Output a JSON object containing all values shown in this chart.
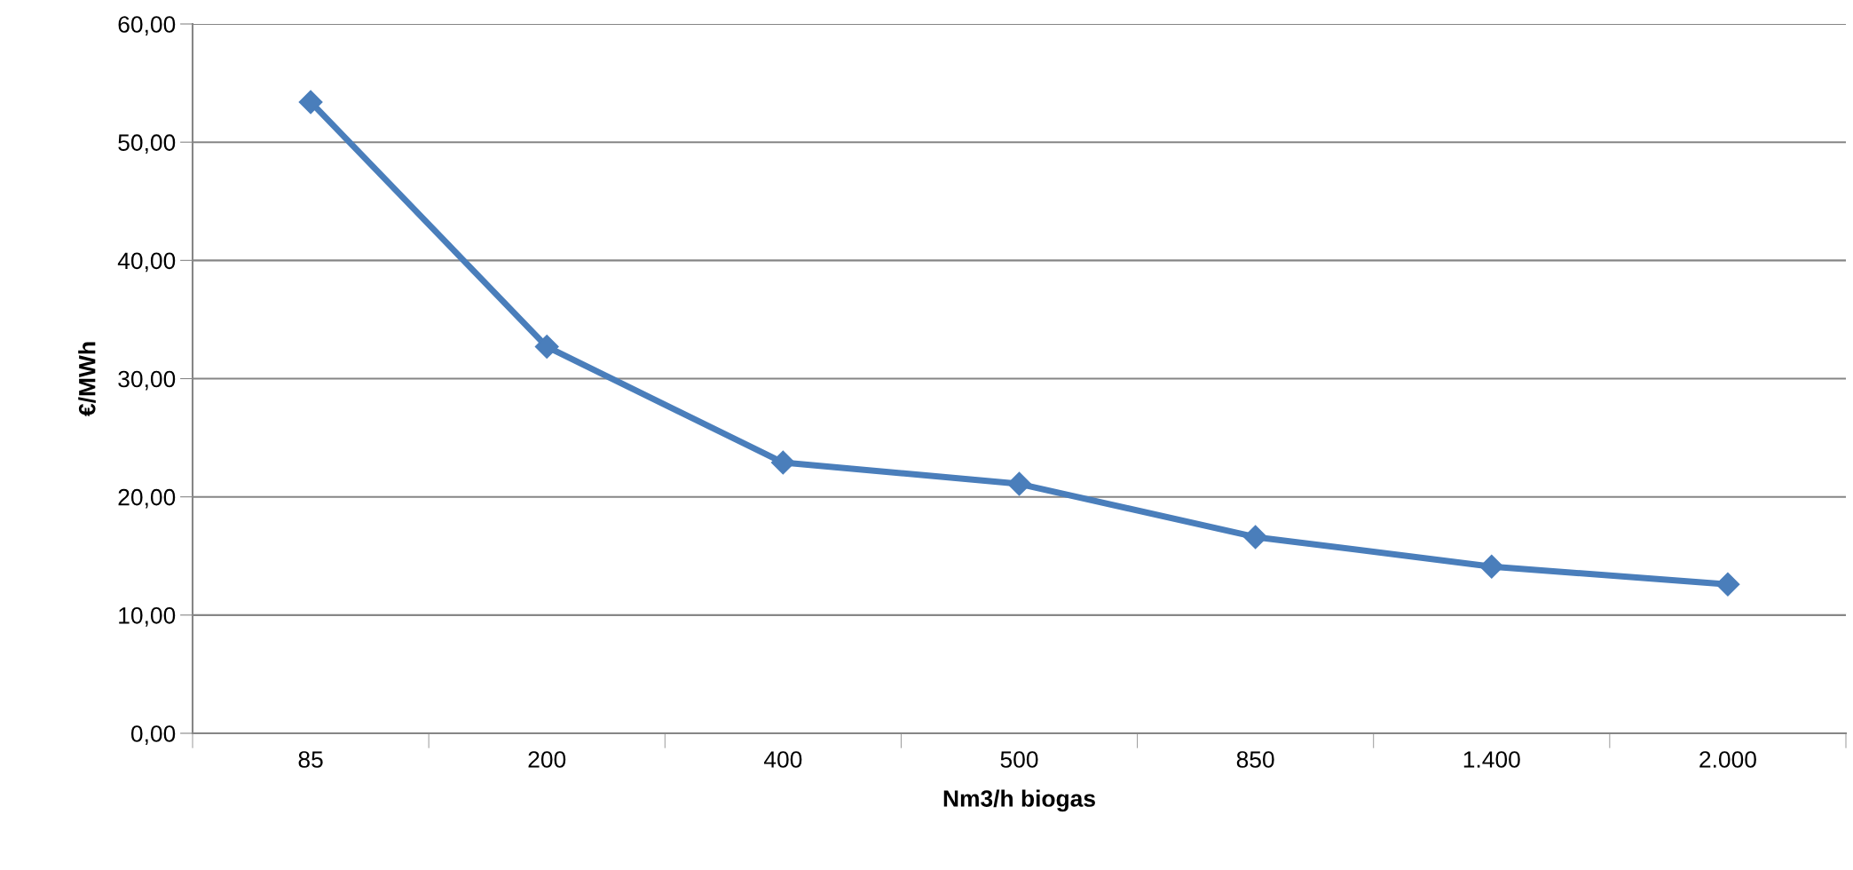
{
  "chart_data": {
    "type": "line",
    "xlabel": "Nm3/h biogas",
    "ylabel": "€/MWh",
    "categories": [
      "85",
      "200",
      "400",
      "500",
      "850",
      "1.400",
      "2.000"
    ],
    "series": [
      {
        "color": "#4a7ebb",
        "values": [
          53.4,
          32.7,
          22.9,
          21.1,
          16.6,
          14.1,
          12.6
        ]
      }
    ],
    "ylim": [
      0,
      60
    ],
    "yticks": [
      {
        "value": 0,
        "label": "0,00"
      },
      {
        "value": 10,
        "label": "10,00"
      },
      {
        "value": 20,
        "label": "20,00"
      },
      {
        "value": 30,
        "label": "30,00"
      },
      {
        "value": 40,
        "label": "40,00"
      },
      {
        "value": 50,
        "label": "50,00"
      },
      {
        "value": 60,
        "label": "60,00"
      }
    ],
    "grid": "y",
    "marker": "diamond",
    "line_style": "solid",
    "legend": false
  }
}
